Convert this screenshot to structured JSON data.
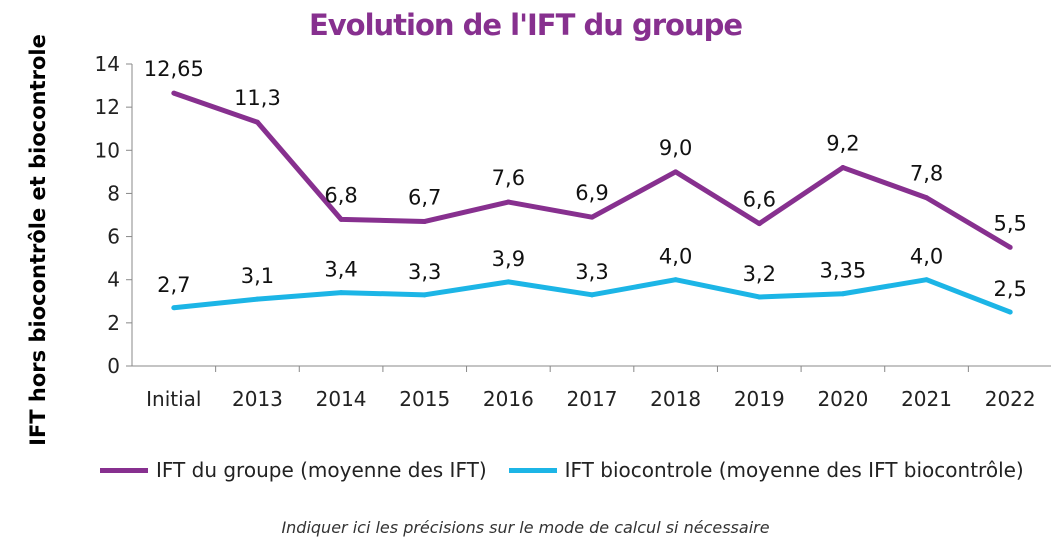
{
  "chart_data": {
    "type": "line",
    "title": "Evolution de l'IFT du groupe",
    "ylabel": "IFT  hors biocontrôle et biocontrole",
    "xlabel": "",
    "categories": [
      "Initial",
      "2013",
      "2014",
      "2015",
      "2016",
      "2017",
      "2018",
      "2019",
      "2020",
      "2021",
      "2022"
    ],
    "ylim": [
      0,
      14
    ],
    "yticks": [
      0,
      2,
      4,
      6,
      8,
      10,
      12,
      14
    ],
    "grid": false,
    "legend_position": "bottom",
    "series": [
      {
        "name": "IFT du groupe (moyenne des IFT)",
        "color": "#87308F",
        "values": [
          12.65,
          11.3,
          6.8,
          6.7,
          7.6,
          6.9,
          9.0,
          6.6,
          9.2,
          7.8,
          5.5
        ],
        "labels": [
          "12,65",
          "11,3",
          "6,8",
          "6,7",
          "7,6",
          "6,9",
          "9,0",
          "6,6",
          "9,2",
          "7,8",
          "5,5"
        ]
      },
      {
        "name": "IFT biocontrole (moyenne des IFT biocontrôle)",
        "color": "#1CB5E6",
        "values": [
          2.7,
          3.1,
          3.4,
          3.3,
          3.9,
          3.3,
          4.0,
          3.2,
          3.35,
          4.0,
          2.5
        ],
        "labels": [
          "2,7",
          "3,1",
          "3,4",
          "3,3",
          "3,9",
          "3,3",
          "4,0",
          "3,2",
          "3,35",
          "4,0",
          "2,5"
        ]
      }
    ],
    "note": "Indiquer ici les précisions sur le mode de calcul si nécessaire"
  }
}
